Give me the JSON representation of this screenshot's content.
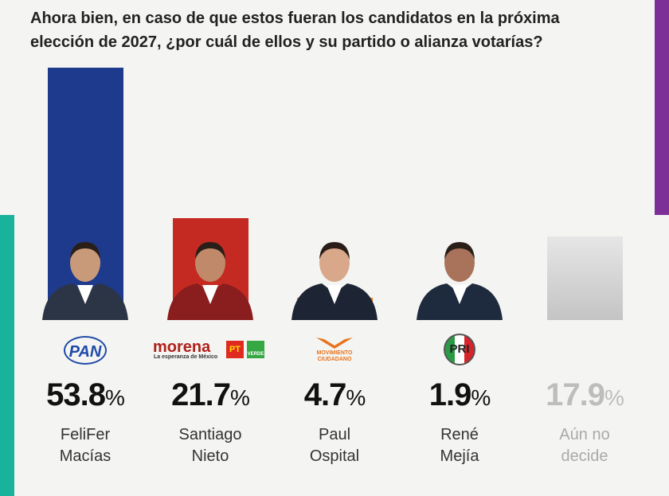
{
  "chart_data": {
    "type": "bar",
    "title": "Ahora bien, en caso de que estos fueran los candidatos en la próxima elección de 2027, ¿por cuál de ellos y su partido o alianza votarías?",
    "categories": [
      "FeliFer Macías",
      "Santiago Nieto",
      "Paul Ospital",
      "René Mejía",
      "Aún no decide"
    ],
    "values": [
      53.8,
      21.7,
      4.7,
      1.9,
      17.9
    ],
    "value_labels": [
      "53.8%",
      "21.7%",
      "4.7%",
      "1.9%",
      "17.9%"
    ],
    "colors": [
      "#1e3a8c",
      "#c42a22",
      "#ef7d1f",
      "#d6262c",
      "#c8c8c8"
    ]
  },
  "parties": [
    "PAN",
    "morena",
    "La esperanza de México",
    "PT",
    "VERDE",
    "MOVIMIENTO CIUDADANO",
    "PRI"
  ]
}
